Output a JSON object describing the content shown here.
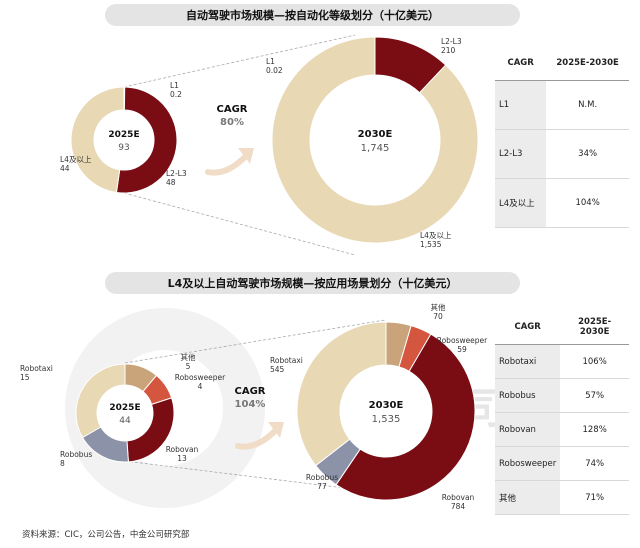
{
  "banner1": "自动驾驶市场规模—按自动化等级划分（十亿美元）",
  "banner2": "L4及以上自动驾驶市场规模—按应用场景划分（十亿美元）",
  "chart_data": [
    {
      "type": "pie",
      "title": "自动驾驶市场规模—按自动化等级划分（十亿美元）",
      "cagr_label": "CAGR",
      "cagr_value": "80%",
      "donuts": [
        {
          "year_label": "2025E",
          "total_label": "93",
          "slices": [
            {
              "name": "L1",
              "value": 0.2,
              "label": "0.2",
              "color": "#e7c8a8"
            },
            {
              "name": "L2-L3",
              "value": 48,
              "label": "48",
              "color": "#7a0c14"
            },
            {
              "name": "L4及以上",
              "value": 44,
              "label": "44",
              "color": "#e8d8b4"
            }
          ]
        },
        {
          "year_label": "2030E",
          "total_label": "1,745",
          "slices": [
            {
              "name": "L1",
              "value": 0.02,
              "label": "0.02",
              "color": "#e7c8a8"
            },
            {
              "name": "L2-L3",
              "value": 210,
              "label": "210",
              "color": "#7a0c14"
            },
            {
              "name": "L4及以上",
              "value": 1535,
              "label": "1,535",
              "color": "#e8d8b4"
            }
          ]
        }
      ]
    },
    {
      "type": "pie",
      "title": "L4及以上自动驾驶市场规模—按应用场景划分（十亿美元）",
      "cagr_label": "CAGR",
      "cagr_value": "104%",
      "donuts": [
        {
          "year_label": "2025E",
          "total_label": "44",
          "slices": [
            {
              "name": "其他",
              "value": 5,
              "label": "5",
              "color": "#c9a47a"
            },
            {
              "name": "Robosweeper",
              "value": 4,
              "label": "4",
              "color": "#d4563e"
            },
            {
              "name": "Robovan",
              "value": 13,
              "label": "13",
              "color": "#7a0c14"
            },
            {
              "name": "Robobus",
              "value": 8,
              "label": "8",
              "color": "#8c93a8"
            },
            {
              "name": "Robotaxi",
              "value": 15,
              "label": "15",
              "color": "#e8d8b4"
            }
          ]
        },
        {
          "year_label": "2030E",
          "total_label": "1,535",
          "slices": [
            {
              "name": "其他",
              "value": 70,
              "label": "70",
              "color": "#c9a47a"
            },
            {
              "name": "Robosweeper",
              "value": 59,
              "label": "59",
              "color": "#d4563e"
            },
            {
              "name": "Robovan",
              "value": 784,
              "label": "784",
              "color": "#7a0c14"
            },
            {
              "name": "Robobus",
              "value": 77,
              "label": "77",
              "color": "#8c93a8"
            },
            {
              "name": "Robotaxi",
              "value": 545,
              "label": "545",
              "color": "#e8d8b4"
            }
          ]
        }
      ]
    }
  ],
  "table1": {
    "headers": [
      "CAGR",
      "2025E-2030E"
    ],
    "rows": [
      [
        "L1",
        "N.M."
      ],
      [
        "L2-L3",
        "34%"
      ],
      [
        "L4及以上",
        "104%"
      ]
    ]
  },
  "table2": {
    "headers": [
      "CAGR",
      "2025E-2030E"
    ],
    "rows": [
      [
        "Robotaxi",
        "106%"
      ],
      [
        "Robobus",
        "57%"
      ],
      [
        "Robovan",
        "128%"
      ],
      [
        "Robosweeper",
        "74%"
      ],
      [
        "其他",
        "71%"
      ]
    ]
  },
  "watermark": "CICC 中金公司",
  "source": "资料来源：CIC，公司公告，中金公司研究部"
}
